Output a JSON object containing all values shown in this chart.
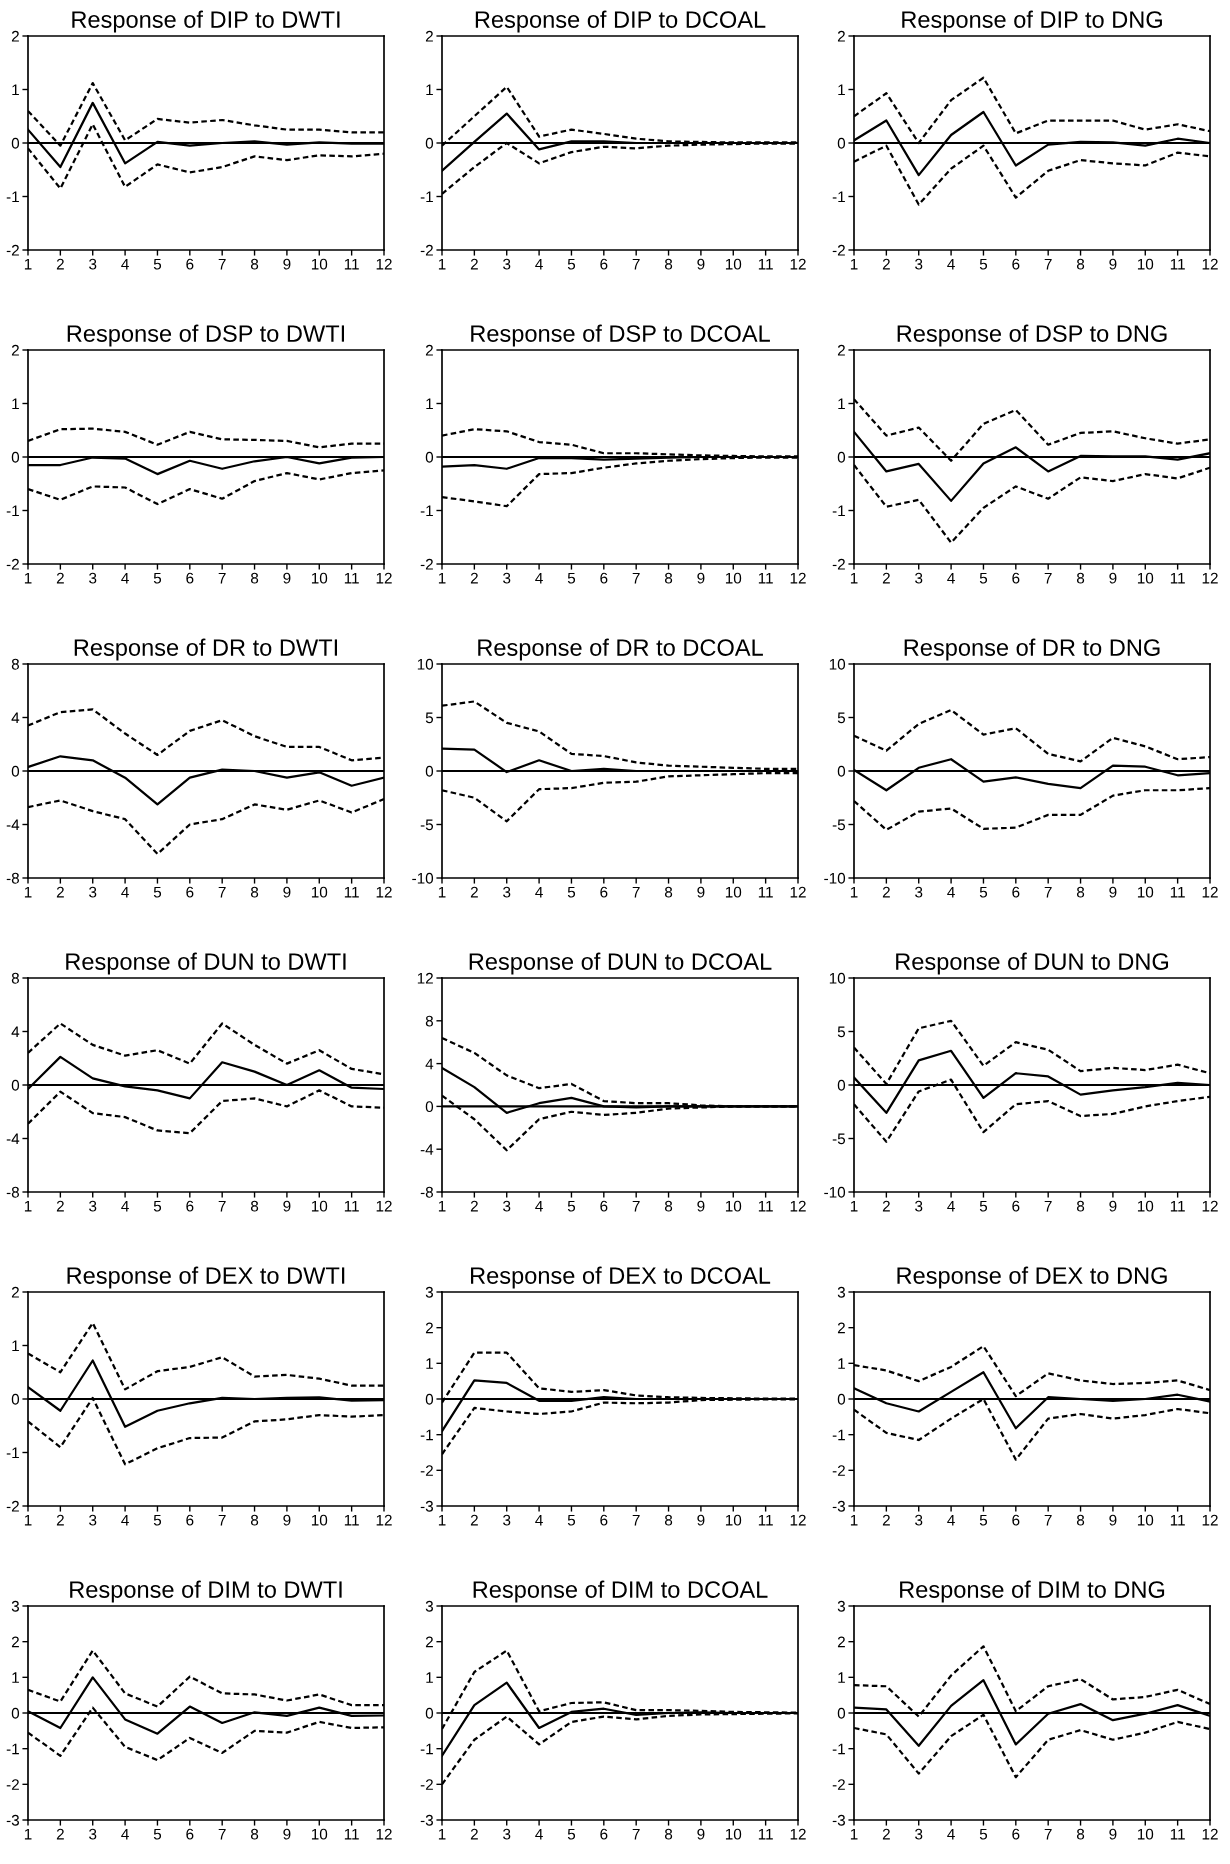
{
  "chart_data": [
    {
      "type": "line",
      "title": "Response of DIP to DWTI",
      "x": [
        1,
        2,
        3,
        4,
        5,
        6,
        7,
        8,
        9,
        10,
        11,
        12
      ],
      "xlim": [
        1,
        12
      ],
      "xticks": [
        1,
        2,
        3,
        4,
        5,
        6,
        7,
        8,
        9,
        10,
        11,
        12
      ],
      "ylim": [
        -2,
        2
      ],
      "yticks": [
        -2,
        -1,
        0,
        1,
        2
      ],
      "ref_lines": [
        {
          "axis": "y",
          "value": 0,
          "color": "#000000"
        }
      ],
      "series": [
        {
          "color": "#000000",
          "line_style": "solid",
          "values": [
            0.25,
            -0.45,
            0.75,
            -0.38,
            0.02,
            -0.05,
            0,
            0.03,
            -0.03,
            0.01,
            -0.01,
            -0.01
          ]
        },
        {
          "color": "#000000",
          "line_style": "dashed",
          "values": [
            0.6,
            -0.05,
            1.12,
            0.05,
            0.45,
            0.38,
            0.43,
            0.33,
            0.25,
            0.25,
            0.2,
            0.2
          ]
        },
        {
          "color": "#000000",
          "line_style": "dashed",
          "values": [
            -0.1,
            -0.85,
            0.35,
            -0.82,
            -0.4,
            -0.55,
            -0.45,
            -0.25,
            -0.32,
            -0.23,
            -0.25,
            -0.2
          ]
        }
      ]
    },
    {
      "type": "line",
      "title": "Response of DIP to DCOAL",
      "x": [
        1,
        2,
        3,
        4,
        5,
        6,
        7,
        8,
        9,
        10,
        11,
        12
      ],
      "xlim": [
        1,
        12
      ],
      "xticks": [
        1,
        2,
        3,
        4,
        5,
        6,
        7,
        8,
        9,
        10,
        11,
        12
      ],
      "ylim": [
        -2,
        2
      ],
      "yticks": [
        -2,
        -1,
        0,
        1,
        2
      ],
      "ref_lines": [
        {
          "axis": "y",
          "value": 0,
          "color": "#000000"
        }
      ],
      "series": [
        {
          "color": "#000000",
          "line_style": "solid",
          "values": [
            -0.52,
            0.02,
            0.55,
            -0.12,
            0.03,
            0.03,
            0,
            0,
            0,
            0,
            0,
            0
          ]
        },
        {
          "color": "#000000",
          "line_style": "dashed",
          "values": [
            -0.05,
            0.5,
            1.05,
            0.12,
            0.25,
            0.17,
            0.08,
            0.03,
            0.02,
            0.01,
            0.01,
            0.01
          ]
        },
        {
          "color": "#000000",
          "line_style": "dashed",
          "values": [
            -0.95,
            -0.45,
            0,
            -0.38,
            -0.17,
            -0.07,
            -0.1,
            -0.05,
            -0.03,
            -0.02,
            -0.01,
            -0.01
          ]
        }
      ]
    },
    {
      "type": "line",
      "title": "Response of DIP to DNG",
      "x": [
        1,
        2,
        3,
        4,
        5,
        6,
        7,
        8,
        9,
        10,
        11,
        12
      ],
      "xlim": [
        1,
        12
      ],
      "xticks": [
        1,
        2,
        3,
        4,
        5,
        6,
        7,
        8,
        9,
        10,
        11,
        12
      ],
      "ylim": [
        -2,
        2
      ],
      "yticks": [
        -2,
        -1,
        0,
        1,
        2
      ],
      "ref_lines": [
        {
          "axis": "y",
          "value": 0,
          "color": "#000000"
        }
      ],
      "series": [
        {
          "color": "#000000",
          "line_style": "solid",
          "values": [
            0.05,
            0.42,
            -0.6,
            0.15,
            0.58,
            -0.42,
            -0.03,
            0.02,
            0.01,
            -0.05,
            0.08,
            0
          ]
        },
        {
          "color": "#000000",
          "line_style": "dashed",
          "values": [
            0.5,
            0.93,
            0,
            0.8,
            1.22,
            0.18,
            0.42,
            0.42,
            0.42,
            0.25,
            0.35,
            0.22
          ]
        },
        {
          "color": "#000000",
          "line_style": "dashed",
          "values": [
            -0.35,
            -0.05,
            -1.15,
            -0.48,
            -0.05,
            -1.02,
            -0.52,
            -0.32,
            -0.38,
            -0.42,
            -0.18,
            -0.25
          ]
        }
      ]
    },
    {
      "type": "line",
      "title": "Response of DSP to DWTI",
      "x": [
        1,
        2,
        3,
        4,
        5,
        6,
        7,
        8,
        9,
        10,
        11,
        12
      ],
      "xlim": [
        1,
        12
      ],
      "xticks": [
        1,
        2,
        3,
        4,
        5,
        6,
        7,
        8,
        9,
        10,
        11,
        12
      ],
      "ylim": [
        -2,
        2
      ],
      "yticks": [
        -2,
        -1,
        0,
        1,
        2
      ],
      "ref_lines": [
        {
          "axis": "y",
          "value": 0,
          "color": "#000000"
        }
      ],
      "series": [
        {
          "color": "#000000",
          "line_style": "solid",
          "values": [
            -0.15,
            -0.15,
            -0.01,
            -0.03,
            -0.32,
            -0.07,
            -0.22,
            -0.08,
            0,
            -0.12,
            -0.01,
            0
          ]
        },
        {
          "color": "#000000",
          "line_style": "dashed",
          "values": [
            0.3,
            0.52,
            0.53,
            0.47,
            0.23,
            0.47,
            0.33,
            0.32,
            0.3,
            0.18,
            0.25,
            0.25
          ]
        },
        {
          "color": "#000000",
          "line_style": "dashed",
          "values": [
            -0.6,
            -0.8,
            -0.55,
            -0.57,
            -0.88,
            -0.6,
            -0.78,
            -0.45,
            -0.3,
            -0.42,
            -0.3,
            -0.25
          ]
        }
      ]
    },
    {
      "type": "line",
      "title": "Response of DSP to DCOAL",
      "x": [
        1,
        2,
        3,
        4,
        5,
        6,
        7,
        8,
        9,
        10,
        11,
        12
      ],
      "xlim": [
        1,
        12
      ],
      "xticks": [
        1,
        2,
        3,
        4,
        5,
        6,
        7,
        8,
        9,
        10,
        11,
        12
      ],
      "ylim": [
        -2,
        2
      ],
      "yticks": [
        -2,
        -1,
        0,
        1,
        2
      ],
      "ref_lines": [
        {
          "axis": "y",
          "value": 0,
          "color": "#000000"
        }
      ],
      "series": [
        {
          "color": "#000000",
          "line_style": "solid",
          "values": [
            -0.18,
            -0.15,
            -0.22,
            -0.02,
            -0.02,
            -0.05,
            -0.03,
            -0.01,
            0,
            0,
            0,
            0
          ]
        },
        {
          "color": "#000000",
          "line_style": "dashed",
          "values": [
            0.4,
            0.52,
            0.48,
            0.28,
            0.23,
            0.07,
            0.07,
            0.05,
            0.03,
            0.02,
            0.01,
            0.01
          ]
        },
        {
          "color": "#000000",
          "line_style": "dashed",
          "values": [
            -0.75,
            -0.83,
            -0.92,
            -0.32,
            -0.3,
            -0.2,
            -0.12,
            -0.07,
            -0.04,
            -0.02,
            -0.01,
            -0.01
          ]
        }
      ]
    },
    {
      "type": "line",
      "title": "Response of DSP to DNG",
      "x": [
        1,
        2,
        3,
        4,
        5,
        6,
        7,
        8,
        9,
        10,
        11,
        12
      ],
      "xlim": [
        1,
        12
      ],
      "xticks": [
        1,
        2,
        3,
        4,
        5,
        6,
        7,
        8,
        9,
        10,
        11,
        12
      ],
      "ylim": [
        -2,
        2
      ],
      "yticks": [
        -2,
        -1,
        0,
        1,
        2
      ],
      "ref_lines": [
        {
          "axis": "y",
          "value": 0,
          "color": "#000000"
        }
      ],
      "series": [
        {
          "color": "#000000",
          "line_style": "solid",
          "values": [
            0.47,
            -0.27,
            -0.13,
            -0.82,
            -0.12,
            0.18,
            -0.27,
            0.02,
            0.01,
            0.01,
            -0.05,
            0.07
          ]
        },
        {
          "color": "#000000",
          "line_style": "dashed",
          "values": [
            1.08,
            0.4,
            0.55,
            -0.07,
            0.62,
            0.88,
            0.23,
            0.45,
            0.48,
            0.35,
            0.25,
            0.33
          ]
        },
        {
          "color": "#000000",
          "line_style": "dashed",
          "values": [
            -0.15,
            -0.93,
            -0.8,
            -1.6,
            -0.95,
            -0.55,
            -0.78,
            -0.38,
            -0.45,
            -0.32,
            -0.4,
            -0.2
          ]
        }
      ]
    },
    {
      "type": "line",
      "title": "Response of DR to DWTI",
      "x": [
        1,
        2,
        3,
        4,
        5,
        6,
        7,
        8,
        9,
        10,
        11,
        12
      ],
      "xlim": [
        1,
        12
      ],
      "xticks": [
        1,
        2,
        3,
        4,
        5,
        6,
        7,
        8,
        9,
        10,
        11,
        12
      ],
      "ylim": [
        -8,
        8
      ],
      "yticks": [
        -8,
        -4,
        0,
        4,
        8
      ],
      "ref_lines": [
        {
          "axis": "y",
          "value": 0,
          "color": "#000000"
        }
      ],
      "series": [
        {
          "color": "#000000",
          "line_style": "solid",
          "values": [
            0.3,
            1.1,
            0.8,
            -0.5,
            -2.5,
            -0.5,
            0.1,
            0,
            -0.5,
            -0.1,
            -1.1,
            -0.5
          ]
        },
        {
          "color": "#000000",
          "line_style": "dashed",
          "values": [
            3.4,
            4.4,
            4.6,
            2.8,
            1.2,
            3,
            3.8,
            2.6,
            1.8,
            1.8,
            0.8,
            1
          ]
        },
        {
          "color": "#000000",
          "line_style": "dashed",
          "values": [
            -2.7,
            -2.2,
            -3,
            -3.6,
            -6.2,
            -4,
            -3.6,
            -2.5,
            -2.9,
            -2.2,
            -3.1,
            -2.1
          ]
        }
      ]
    },
    {
      "type": "line",
      "title": "Response of DR to DCOAL",
      "x": [
        1,
        2,
        3,
        4,
        5,
        6,
        7,
        8,
        9,
        10,
        11,
        12
      ],
      "xlim": [
        1,
        12
      ],
      "xticks": [
        1,
        2,
        3,
        4,
        5,
        6,
        7,
        8,
        9,
        10,
        11,
        12
      ],
      "ylim": [
        -10,
        10
      ],
      "yticks": [
        -10,
        -5,
        0,
        5,
        10
      ],
      "ref_lines": [
        {
          "axis": "y",
          "value": 0,
          "color": "#000000"
        }
      ],
      "series": [
        {
          "color": "#000000",
          "line_style": "solid",
          "values": [
            2.1,
            2,
            -0.1,
            1,
            0,
            0.2,
            0,
            0,
            0,
            0,
            0,
            0
          ]
        },
        {
          "color": "#000000",
          "line_style": "dashed",
          "values": [
            6.1,
            6.5,
            4.5,
            3.7,
            1.6,
            1.4,
            0.8,
            0.5,
            0.4,
            0.3,
            0.2,
            0.2
          ]
        },
        {
          "color": "#000000",
          "line_style": "dashed",
          "values": [
            -1.8,
            -2.5,
            -4.7,
            -1.7,
            -1.6,
            -1.1,
            -1,
            -0.5,
            -0.4,
            -0.3,
            -0.2,
            -0.2
          ]
        }
      ]
    },
    {
      "type": "line",
      "title": "Response of DR to DNG",
      "x": [
        1,
        2,
        3,
        4,
        5,
        6,
        7,
        8,
        9,
        10,
        11,
        12
      ],
      "xlim": [
        1,
        12
      ],
      "xticks": [
        1,
        2,
        3,
        4,
        5,
        6,
        7,
        8,
        9,
        10,
        11,
        12
      ],
      "ylim": [
        -10,
        10
      ],
      "yticks": [
        -10,
        -5,
        0,
        5,
        10
      ],
      "ref_lines": [
        {
          "axis": "y",
          "value": 0,
          "color": "#000000"
        }
      ],
      "series": [
        {
          "color": "#000000",
          "line_style": "solid",
          "values": [
            0.1,
            -1.8,
            0.3,
            1.1,
            -1,
            -0.6,
            -1.2,
            -1.6,
            0.5,
            0.4,
            -0.4,
            -0.2
          ]
        },
        {
          "color": "#000000",
          "line_style": "dashed",
          "values": [
            3.3,
            1.9,
            4.4,
            5.7,
            3.4,
            4,
            1.6,
            0.9,
            3.1,
            2.3,
            1.1,
            1.3
          ]
        },
        {
          "color": "#000000",
          "line_style": "dashed",
          "values": [
            -2.8,
            -5.5,
            -3.8,
            -3.5,
            -5.4,
            -5.3,
            -4.1,
            -4.1,
            -2.3,
            -1.8,
            -1.8,
            -1.6
          ]
        }
      ]
    },
    {
      "type": "line",
      "title": "Response of DUN to DWTI",
      "x": [
        1,
        2,
        3,
        4,
        5,
        6,
        7,
        8,
        9,
        10,
        11,
        12
      ],
      "xlim": [
        1,
        12
      ],
      "xticks": [
        1,
        2,
        3,
        4,
        5,
        6,
        7,
        8,
        9,
        10,
        11,
        12
      ],
      "ylim": [
        -8,
        8
      ],
      "yticks": [
        -8,
        -4,
        0,
        4,
        8
      ],
      "ref_lines": [
        {
          "axis": "y",
          "value": 0,
          "color": "#000000"
        }
      ],
      "series": [
        {
          "color": "#000000",
          "line_style": "solid",
          "values": [
            -0.3,
            2.1,
            0.5,
            -0.1,
            -0.4,
            -1,
            1.7,
            1,
            0,
            1.1,
            -0.2,
            -0.3
          ]
        },
        {
          "color": "#000000",
          "line_style": "dashed",
          "values": [
            2.4,
            4.6,
            3,
            2.2,
            2.6,
            1.6,
            4.6,
            3,
            1.6,
            2.6,
            1.2,
            0.8
          ]
        },
        {
          "color": "#000000",
          "line_style": "dashed",
          "values": [
            -2.9,
            -0.5,
            -2.1,
            -2.4,
            -3.4,
            -3.6,
            -1.2,
            -1,
            -1.6,
            -0.4,
            -1.6,
            -1.7
          ]
        }
      ]
    },
    {
      "type": "line",
      "title": "Response of DUN to DCOAL",
      "x": [
        1,
        2,
        3,
        4,
        5,
        6,
        7,
        8,
        9,
        10,
        11,
        12
      ],
      "xlim": [
        1,
        12
      ],
      "xticks": [
        1,
        2,
        3,
        4,
        5,
        6,
        7,
        8,
        9,
        10,
        11,
        12
      ],
      "ylim": [
        -8,
        12
      ],
      "yticks": [
        -8,
        -4,
        0,
        4,
        8,
        12
      ],
      "ref_lines": [
        {
          "axis": "y",
          "value": 0,
          "color": "#000000"
        }
      ],
      "series": [
        {
          "color": "#000000",
          "line_style": "solid",
          "values": [
            3.6,
            1.8,
            -0.6,
            0.3,
            0.8,
            0,
            -0.1,
            0,
            0,
            0,
            0,
            0
          ]
        },
        {
          "color": "#000000",
          "line_style": "dashed",
          "values": [
            6.4,
            5,
            2.9,
            1.7,
            2.1,
            0.5,
            0.3,
            0.3,
            0.1,
            0,
            0,
            0
          ]
        },
        {
          "color": "#000000",
          "line_style": "dashed",
          "values": [
            1,
            -1.2,
            -4.1,
            -1.2,
            -0.5,
            -0.8,
            -0.6,
            -0.2,
            -0.1,
            0,
            0,
            0
          ]
        }
      ]
    },
    {
      "type": "line",
      "title": "Response of DUN to DNG",
      "x": [
        1,
        2,
        3,
        4,
        5,
        6,
        7,
        8,
        9,
        10,
        11,
        12
      ],
      "xlim": [
        1,
        12
      ],
      "xticks": [
        1,
        2,
        3,
        4,
        5,
        6,
        7,
        8,
        9,
        10,
        11,
        12
      ],
      "ylim": [
        -10,
        10
      ],
      "yticks": [
        -10,
        -5,
        0,
        5,
        10
      ],
      "ref_lines": [
        {
          "axis": "y",
          "value": 0,
          "color": "#000000"
        }
      ],
      "series": [
        {
          "color": "#000000",
          "line_style": "solid",
          "values": [
            0.7,
            -2.6,
            2.3,
            3.2,
            -1.2,
            1.1,
            0.8,
            -0.9,
            -0.5,
            -0.2,
            0.2,
            0
          ]
        },
        {
          "color": "#000000",
          "line_style": "dashed",
          "values": [
            3.5,
            0.1,
            5.3,
            6,
            1.8,
            4,
            3.3,
            1.3,
            1.6,
            1.4,
            1.9,
            1.1
          ]
        },
        {
          "color": "#000000",
          "line_style": "dashed",
          "values": [
            -1.8,
            -5.3,
            -0.6,
            0.5,
            -4.4,
            -1.8,
            -1.5,
            -2.9,
            -2.7,
            -2,
            -1.5,
            -1.1
          ]
        }
      ]
    },
    {
      "type": "line",
      "title": "Response of DEX to DWTI",
      "x": [
        1,
        2,
        3,
        4,
        5,
        6,
        7,
        8,
        9,
        10,
        11,
        12
      ],
      "xlim": [
        1,
        12
      ],
      "xticks": [
        1,
        2,
        3,
        4,
        5,
        6,
        7,
        8,
        9,
        10,
        11,
        12
      ],
      "ylim": [
        -2,
        2
      ],
      "yticks": [
        -2,
        -1,
        0,
        1,
        2
      ],
      "ref_lines": [
        {
          "axis": "y",
          "value": 0,
          "color": "#000000"
        }
      ],
      "series": [
        {
          "color": "#000000",
          "line_style": "solid",
          "values": [
            0.22,
            -0.22,
            0.72,
            -0.52,
            -0.22,
            -0.08,
            0.02,
            0,
            0.02,
            0.03,
            -0.03,
            -0.02
          ]
        },
        {
          "color": "#000000",
          "line_style": "dashed",
          "values": [
            0.85,
            0.5,
            1.42,
            0.18,
            0.52,
            0.6,
            0.78,
            0.42,
            0.45,
            0.38,
            0.25,
            0.25
          ]
        },
        {
          "color": "#000000",
          "line_style": "dashed",
          "values": [
            -0.42,
            -0.9,
            0.02,
            -1.22,
            -0.92,
            -0.73,
            -0.72,
            -0.42,
            -0.38,
            -0.3,
            -0.33,
            -0.3
          ]
        }
      ]
    },
    {
      "type": "line",
      "title": "Response of DEX to DCOAL",
      "x": [
        1,
        2,
        3,
        4,
        5,
        6,
        7,
        8,
        9,
        10,
        11,
        12
      ],
      "xlim": [
        1,
        12
      ],
      "xticks": [
        1,
        2,
        3,
        4,
        5,
        6,
        7,
        8,
        9,
        10,
        11,
        12
      ],
      "ylim": [
        -3,
        3
      ],
      "yticks": [
        -3,
        -2,
        -1,
        0,
        1,
        2,
        3
      ],
      "ref_lines": [
        {
          "axis": "y",
          "value": 0,
          "color": "#000000"
        }
      ],
      "series": [
        {
          "color": "#000000",
          "line_style": "solid",
          "values": [
            -0.9,
            0.52,
            0.45,
            -0.05,
            -0.05,
            0.05,
            0,
            0,
            0,
            0,
            0,
            0
          ]
        },
        {
          "color": "#000000",
          "line_style": "dashed",
          "values": [
            -0.1,
            1.3,
            1.3,
            0.3,
            0.2,
            0.25,
            0.1,
            0.05,
            0.03,
            0.02,
            0.01,
            0.01
          ]
        },
        {
          "color": "#000000",
          "line_style": "dashed",
          "values": [
            -1.55,
            -0.25,
            -0.35,
            -0.42,
            -0.35,
            -0.1,
            -0.12,
            -0.1,
            -0.03,
            -0.02,
            -0.01,
            -0.01
          ]
        }
      ]
    },
    {
      "type": "line",
      "title": "Response of DEX to DNG",
      "x": [
        1,
        2,
        3,
        4,
        5,
        6,
        7,
        8,
        9,
        10,
        11,
        12
      ],
      "xlim": [
        1,
        12
      ],
      "xticks": [
        1,
        2,
        3,
        4,
        5,
        6,
        7,
        8,
        9,
        10,
        11,
        12
      ],
      "ylim": [
        -3,
        3
      ],
      "yticks": [
        -3,
        -2,
        -1,
        0,
        1,
        2,
        3
      ],
      "ref_lines": [
        {
          "axis": "y",
          "value": 0,
          "color": "#000000"
        }
      ],
      "series": [
        {
          "color": "#000000",
          "line_style": "solid",
          "values": [
            0.3,
            -0.12,
            -0.35,
            0.2,
            0.75,
            -0.82,
            0.05,
            0,
            -0.05,
            0,
            0.12,
            -0.07
          ]
        },
        {
          "color": "#000000",
          "line_style": "dashed",
          "values": [
            0.95,
            0.8,
            0.5,
            0.9,
            1.48,
            0.08,
            0.72,
            0.52,
            0.42,
            0.45,
            0.52,
            0.25
          ]
        },
        {
          "color": "#000000",
          "line_style": "dashed",
          "values": [
            -0.3,
            -0.95,
            -1.15,
            -0.55,
            0,
            -1.7,
            -0.55,
            -0.42,
            -0.55,
            -0.45,
            -0.28,
            -0.4
          ]
        }
      ]
    },
    {
      "type": "line",
      "title": "Response of DIM to DWTI",
      "x": [
        1,
        2,
        3,
        4,
        5,
        6,
        7,
        8,
        9,
        10,
        11,
        12
      ],
      "xlim": [
        1,
        12
      ],
      "xticks": [
        1,
        2,
        3,
        4,
        5,
        6,
        7,
        8,
        9,
        10,
        11,
        12
      ],
      "ylim": [
        -3,
        3
      ],
      "yticks": [
        -3,
        -2,
        -1,
        0,
        1,
        2,
        3
      ],
      "ref_lines": [
        {
          "axis": "y",
          "value": 0,
          "color": "#000000"
        }
      ],
      "series": [
        {
          "color": "#000000",
          "line_style": "solid",
          "values": [
            0.05,
            -0.42,
            1,
            -0.18,
            -0.58,
            0.18,
            -0.28,
            0.02,
            -0.08,
            0.15,
            -0.08,
            -0.07
          ]
        },
        {
          "color": "#000000",
          "line_style": "dashed",
          "values": [
            0.65,
            0.32,
            1.75,
            0.55,
            0.18,
            1.02,
            0.55,
            0.52,
            0.35,
            0.52,
            0.22,
            0.22
          ]
        },
        {
          "color": "#000000",
          "line_style": "dashed",
          "values": [
            -0.55,
            -1.2,
            0.15,
            -0.95,
            -1.32,
            -0.7,
            -1.12,
            -0.5,
            -0.55,
            -0.25,
            -0.42,
            -0.4
          ]
        }
      ]
    },
    {
      "type": "line",
      "title": "Response of DIM to DCOAL",
      "x": [
        1,
        2,
        3,
        4,
        5,
        6,
        7,
        8,
        9,
        10,
        11,
        12
      ],
      "xlim": [
        1,
        12
      ],
      "xticks": [
        1,
        2,
        3,
        4,
        5,
        6,
        7,
        8,
        9,
        10,
        11,
        12
      ],
      "ylim": [
        -3,
        3
      ],
      "yticks": [
        -3,
        -2,
        -1,
        0,
        1,
        2,
        3
      ],
      "ref_lines": [
        {
          "axis": "y",
          "value": 0,
          "color": "#000000"
        }
      ],
      "series": [
        {
          "color": "#000000",
          "line_style": "solid",
          "values": [
            -1.2,
            0.22,
            0.85,
            -0.42,
            0.03,
            0.12,
            -0.05,
            0,
            0.02,
            0,
            0,
            0
          ]
        },
        {
          "color": "#000000",
          "line_style": "dashed",
          "values": [
            -0.45,
            1.15,
            1.75,
            0.05,
            0.28,
            0.3,
            0.08,
            0.08,
            0.06,
            0.03,
            0.02,
            0.01
          ]
        },
        {
          "color": "#000000",
          "line_style": "dashed",
          "values": [
            -2,
            -0.75,
            -0.1,
            -0.88,
            -0.25,
            -0.1,
            -0.18,
            -0.08,
            -0.04,
            -0.03,
            -0.02,
            -0.01
          ]
        }
      ]
    },
    {
      "type": "line",
      "title": "Response of DIM to DNG",
      "x": [
        1,
        2,
        3,
        4,
        5,
        6,
        7,
        8,
        9,
        10,
        11,
        12
      ],
      "xlim": [
        1,
        12
      ],
      "xticks": [
        1,
        2,
        3,
        4,
        5,
        6,
        7,
        8,
        9,
        10,
        11,
        12
      ],
      "ylim": [
        -3,
        3
      ],
      "yticks": [
        -3,
        -2,
        -1,
        0,
        1,
        2,
        3
      ],
      "ref_lines": [
        {
          "axis": "y",
          "value": 0,
          "color": "#000000"
        }
      ],
      "series": [
        {
          "color": "#000000",
          "line_style": "solid",
          "values": [
            0.15,
            0.1,
            -0.92,
            0.2,
            0.92,
            -0.88,
            -0.02,
            0.25,
            -0.2,
            -0.02,
            0.22,
            -0.08
          ]
        },
        {
          "color": "#000000",
          "line_style": "dashed",
          "values": [
            0.78,
            0.75,
            -0.1,
            1.05,
            1.87,
            0.05,
            0.75,
            0.95,
            0.38,
            0.45,
            0.65,
            0.25
          ]
        },
        {
          "color": "#000000",
          "line_style": "dashed",
          "values": [
            -0.42,
            -0.6,
            -1.7,
            -0.65,
            -0.05,
            -1.8,
            -0.75,
            -0.48,
            -0.75,
            -0.55,
            -0.25,
            -0.45
          ]
        }
      ]
    }
  ]
}
